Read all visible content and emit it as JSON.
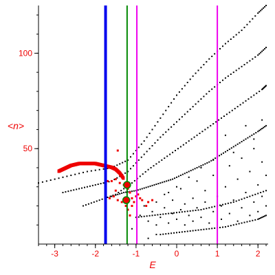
{
  "chart_data": {
    "type": "scatter",
    "xlabel": "E",
    "ylabel": "<n>",
    "xlim": [
      -3.4,
      2.25
    ],
    "ylim": [
      0,
      125
    ],
    "xticks": [
      -3,
      -2,
      -1,
      0,
      1,
      2
    ],
    "yticks": [
      50,
      100
    ],
    "xtick_minor_step": 0.2,
    "ytick_minor_step": 10,
    "grid": false,
    "colors": {
      "axes": "#000000",
      "labels": "#ee0000",
      "black_points": "#000000",
      "red_points": "#ee0000",
      "blue_line": "#0000ee",
      "green_line": "#008800",
      "magenta_line": "#ee00ee",
      "circle_fill": "#ee0000",
      "circle_edge": "#008800"
    },
    "vertical_lines": [
      {
        "x": -1.75,
        "color": "#0000ee",
        "weight": "thick"
      },
      {
        "x": -1.22,
        "color": "#008800",
        "weight": "normal"
      },
      {
        "x": -0.98,
        "color": "#ee00ee",
        "weight": "normal"
      },
      {
        "x": 1.0,
        "color": "#ee00ee",
        "weight": "normal"
      }
    ],
    "curves": [
      {
        "x": [
          -3.4,
          -2.8,
          -2.2,
          -1.6,
          -1.2,
          -0.8,
          -0.4,
          0.0,
          0.4,
          0.8,
          1.2,
          1.6,
          2.0,
          2.2
        ],
        "y": [
          32,
          35,
          38,
          40,
          44,
          54,
          66,
          78,
          88,
          97,
          105,
          112,
          121,
          125
        ]
      },
      {
        "x": [
          -2.8,
          -2.4,
          -2.0,
          -1.6,
          -1.2,
          -0.8,
          -0.4,
          0.0,
          0.4,
          0.8,
          1.2,
          1.6,
          2.0,
          2.2
        ],
        "y": [
          27,
          29,
          31,
          33,
          38,
          47,
          56,
          64,
          72,
          80,
          87,
          93,
          99,
          103
        ]
      },
      {
        "x": [
          -2.3,
          -1.9,
          -1.5,
          -1.1,
          -0.7,
          -0.3,
          0.1,
          0.5,
          0.9,
          1.3,
          1.7,
          2.1,
          2.2
        ],
        "y": [
          20,
          23,
          26,
          32,
          39,
          45,
          51,
          57,
          63,
          69,
          75,
          81,
          83
        ]
      },
      {
        "x": [
          -1.6,
          -1.3,
          -1.0,
          -0.7,
          -0.4,
          -0.1,
          0.2,
          0.5,
          0.8,
          1.1,
          1.4,
          1.7,
          2.0,
          2.2
        ],
        "y": [
          25,
          27,
          28,
          30,
          32,
          34,
          37,
          40,
          43,
          47,
          51,
          55,
          59,
          62
        ]
      },
      {
        "x": [
          -1.0,
          -0.6,
          -0.2,
          0.2,
          0.6,
          1.0,
          1.4,
          1.8,
          2.2
        ],
        "y": [
          14,
          15,
          16,
          17,
          18,
          20,
          22,
          25,
          28
        ]
      },
      {
        "x": [
          -0.4,
          0.0,
          0.4,
          0.8,
          1.2,
          1.6,
          2.0,
          2.2
        ],
        "y": [
          5,
          6,
          7,
          8,
          9,
          11,
          13,
          15
        ]
      }
    ],
    "scatter_black": [
      [
        -0.9,
        15
      ],
      [
        -0.8,
        20
      ],
      [
        -0.7,
        12
      ],
      [
        -0.6,
        17
      ],
      [
        -0.5,
        22
      ],
      [
        -0.5,
        10
      ],
      [
        -0.4,
        14
      ],
      [
        -0.3,
        19
      ],
      [
        -0.3,
        26
      ],
      [
        -0.2,
        11
      ],
      [
        -0.1,
        16
      ],
      [
        -0.1,
        23
      ],
      [
        0.0,
        13
      ],
      [
        0.1,
        18
      ],
      [
        0.1,
        29
      ],
      [
        0.2,
        10
      ],
      [
        0.2,
        21
      ],
      [
        0.3,
        15
      ],
      [
        0.4,
        24
      ],
      [
        0.4,
        12
      ],
      [
        0.5,
        19
      ],
      [
        0.5,
        33
      ],
      [
        0.6,
        14
      ],
      [
        0.7,
        22
      ],
      [
        0.7,
        28
      ],
      [
        0.8,
        11
      ],
      [
        0.9,
        17
      ],
      [
        0.9,
        36
      ],
      [
        1.0,
        25
      ],
      [
        1.1,
        13
      ],
      [
        1.1,
        20
      ],
      [
        1.2,
        30
      ],
      [
        1.3,
        16
      ],
      [
        1.3,
        41
      ],
      [
        1.4,
        23
      ],
      [
        1.5,
        12
      ],
      [
        1.5,
        34
      ],
      [
        1.6,
        19
      ],
      [
        1.6,
        45
      ],
      [
        1.7,
        27
      ],
      [
        1.8,
        15
      ],
      [
        1.8,
        38
      ],
      [
        1.9,
        22
      ],
      [
        1.9,
        50
      ],
      [
        2.0,
        31
      ],
      [
        2.0,
        17
      ],
      [
        2.1,
        43
      ],
      [
        2.1,
        25
      ],
      [
        2.2,
        20
      ],
      [
        2.2,
        36
      ],
      [
        1.7,
        62
      ],
      [
        1.9,
        55
      ],
      [
        2.1,
        65
      ],
      [
        1.4,
        48
      ],
      [
        1.2,
        57
      ],
      [
        0.9,
        44
      ],
      [
        0.6,
        40
      ],
      [
        0.3,
        35
      ],
      [
        0.0,
        30
      ],
      [
        -0.2,
        27
      ],
      [
        -0.5,
        5
      ],
      [
        -1.1,
        8
      ],
      [
        -0.7,
        3
      ]
    ],
    "red_band": {
      "x": [
        -2.9,
        -2.8,
        -2.7,
        -2.6,
        -2.5,
        -2.4,
        -2.3,
        -2.2,
        -2.1,
        -2.0,
        -1.9,
        -1.8,
        -1.7,
        -1.6,
        -1.5,
        -1.4,
        -1.3
      ],
      "y": [
        38,
        39,
        40,
        41,
        41.5,
        42,
        42,
        42,
        42,
        42,
        41.5,
        41,
        40.5,
        40,
        39,
        37,
        34
      ]
    },
    "red_scatter": [
      [
        -1.45,
        49
      ],
      [
        -1.3,
        31
      ],
      [
        -1.2,
        29
      ],
      [
        -1.15,
        27
      ],
      [
        -1.1,
        24
      ],
      [
        -1.05,
        22
      ],
      [
        -1.0,
        25
      ],
      [
        -0.95,
        26
      ],
      [
        -0.9,
        24
      ],
      [
        -0.85,
        23
      ],
      [
        -0.7,
        22
      ],
      [
        -0.6,
        23
      ],
      [
        -1.25,
        20
      ],
      [
        -1.2,
        18
      ],
      [
        -1.15,
        15
      ],
      [
        -1.1,
        20
      ],
      [
        -1.5,
        34
      ],
      [
        -1.6,
        33
      ],
      [
        -1.4,
        32
      ],
      [
        -1.7,
        33
      ],
      [
        -1.55,
        25
      ],
      [
        -1.65,
        24
      ],
      [
        -1.45,
        23
      ],
      [
        -1.35,
        22
      ],
      [
        -1.75,
        26
      ],
      [
        -1.5,
        28
      ],
      [
        -0.75,
        20
      ]
    ],
    "highlight_circles": [
      {
        "x": -1.22,
        "y": 31
      },
      {
        "x": -1.24,
        "y": 23
      }
    ]
  }
}
